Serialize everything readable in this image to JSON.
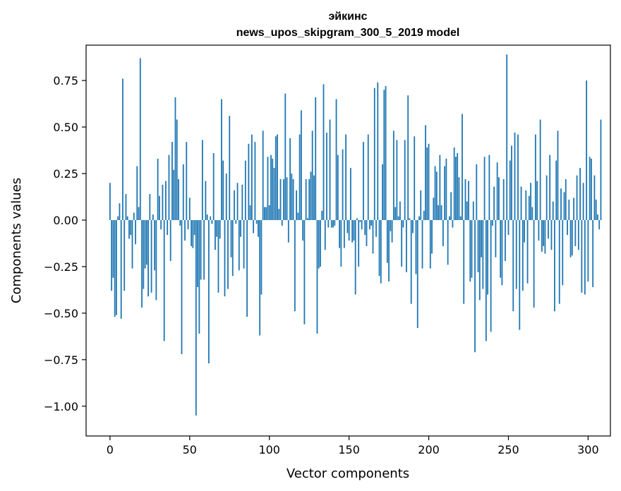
{
  "chart_data": {
    "type": "bar",
    "title": "эйкинс",
    "subtitle": "news_upos_skipgram_300_5_2019 model",
    "xlabel": "Vector components",
    "ylabel": "Components values",
    "xlim": [
      -15,
      314
    ],
    "ylim": [
      -1.16,
      0.94
    ],
    "x_ticks": [
      0,
      50,
      100,
      150,
      200,
      250,
      300
    ],
    "x_tick_labels": [
      "0",
      "50",
      "100",
      "150",
      "200",
      "250",
      "300"
    ],
    "y_ticks": [
      0.75,
      0.5,
      0.25,
      0.0,
      -0.25,
      -0.5,
      -0.75,
      -1.0
    ],
    "y_tick_labels": [
      "0.75",
      "0.50",
      "0.25",
      "0.00",
      "−0.25",
      "−0.50",
      "−0.75",
      "−1.00"
    ],
    "bar_color": "#1f77b4",
    "grid": false,
    "values": [
      0.2,
      -0.38,
      -0.31,
      -0.52,
      -0.51,
      0.02,
      0.09,
      -0.53,
      0.76,
      -0.38,
      0.14,
      0.02,
      -0.1,
      -0.08,
      -0.26,
      0.04,
      -0.13,
      0.29,
      0.07,
      0.87,
      -0.47,
      -0.37,
      -0.26,
      -0.24,
      -0.41,
      0.14,
      -0.39,
      0.03,
      -0.27,
      -0.43,
      0.33,
      0.13,
      -0.05,
      0.19,
      -0.65,
      0.21,
      -0.08,
      0.35,
      -0.22,
      0.42,
      0.27,
      0.66,
      0.54,
      0.22,
      -0.03,
      -0.72,
      0.3,
      -0.11,
      0.42,
      -0.05,
      0.12,
      -0.14,
      -0.15,
      -0.08,
      -1.05,
      -0.36,
      -0.61,
      -0.32,
      0.43,
      -0.32,
      0.21,
      0.03,
      -0.77,
      0.02,
      -0.02,
      0.36,
      -0.16,
      -0.09,
      -0.39,
      -0.1,
      0.65,
      0.32,
      -0.41,
      0.25,
      -0.37,
      0.56,
      -0.2,
      -0.3,
      0.16,
      -0.02,
      0.2,
      -0.27,
      -0.09,
      0.19,
      -0.26,
      0.32,
      -0.52,
      0.41,
      0.08,
      0.46,
      -0.07,
      0.42,
      -0.02,
      -0.09,
      -0.62,
      -0.4,
      0.48,
      0.07,
      0.07,
      0.34,
      0.08,
      0.35,
      0.33,
      0.28,
      0.45,
      0.46,
      0.06,
      0.22,
      -0.03,
      0.22,
      0.68,
      0.23,
      -0.12,
      0.44,
      0.25,
      0.22,
      -0.49,
      0.16,
      0.04,
      0.46,
      0.59,
      -0.11,
      -0.56,
      0.22,
      0.01,
      0.22,
      0.26,
      0.48,
      0.24,
      0.66,
      -0.61,
      -0.26,
      -0.25,
      0.05,
      0.73,
      -0.16,
      0.47,
      -0.04,
      0.54,
      -0.04,
      -0.04,
      -0.03,
      0.65,
      0.35,
      -0.15,
      -0.25,
      0.38,
      -0.15,
      0.46,
      -0.07,
      -0.11,
      0.28,
      -0.12,
      -0.11,
      -0.4,
      0.01,
      -0.25,
      -0.01,
      -0.05,
      0.42,
      -0.08,
      -0.14,
      0.46,
      -0.05,
      -0.03,
      -0.18,
      0.71,
      -0.09,
      0.74,
      -0.3,
      -0.34,
      0.3,
      0.7,
      0.72,
      -0.23,
      -0.33,
      -0.06,
      -0.12,
      0.48,
      0.07,
      0.43,
      0.02,
      0.1,
      -0.25,
      -0.04,
      0.43,
      -0.28,
      0.67,
      0.01,
      -0.45,
      -0.07,
      0.45,
      -0.29,
      -0.58,
      0.02,
      0.16,
      -0.26,
      0.05,
      0.51,
      0.39,
      0.41,
      -0.26,
      -0.18,
      0.12,
      0.29,
      0.26,
      0.08,
      0.35,
      0.08,
      -0.14,
      0.29,
      0.33,
      -0.24,
      0.02,
      0.15,
      -0.04,
      0.39,
      0.34,
      0.36,
      0.23,
      0.02,
      0.57,
      -0.45,
      0.22,
      0.1,
      0.21,
      -0.33,
      -0.31,
      0.1,
      -0.71,
      0.3,
      -0.28,
      -0.43,
      -0.2,
      -0.37,
      0.34,
      -0.65,
      -0.4,
      0.35,
      -0.6,
      -0.03,
      0.18,
      -0.2,
      0.31,
      0.23,
      -0.31,
      -0.35,
      0.22,
      -0.22,
      0.89,
      -0.08,
      0.32,
      0.4,
      -0.49,
      0.47,
      -0.37,
      0.46,
      -0.59,
      0.18,
      -0.38,
      -0.12,
      0.16,
      -0.34,
      0.13,
      0.2,
      0.07,
      -0.47,
      0.46,
      0.21,
      -0.11,
      0.54,
      -0.17,
      -0.14,
      -0.18,
      0.24,
      -0.1,
      0.35,
      -0.16,
      0.1,
      -0.49,
      0.32,
      0.48,
      -0.45,
      0.17,
      -0.35,
      0.15,
      0.22,
      -0.08,
      0.11,
      -0.2,
      -0.19,
      0.12,
      -0.14,
      0.24,
      -0.16,
      0.28,
      -0.39,
      0.2,
      -0.4,
      0.75,
      -0.33,
      0.34,
      0.33,
      -0.36,
      0.24,
      0.11,
      0.03,
      -0.05,
      0.54
    ]
  }
}
